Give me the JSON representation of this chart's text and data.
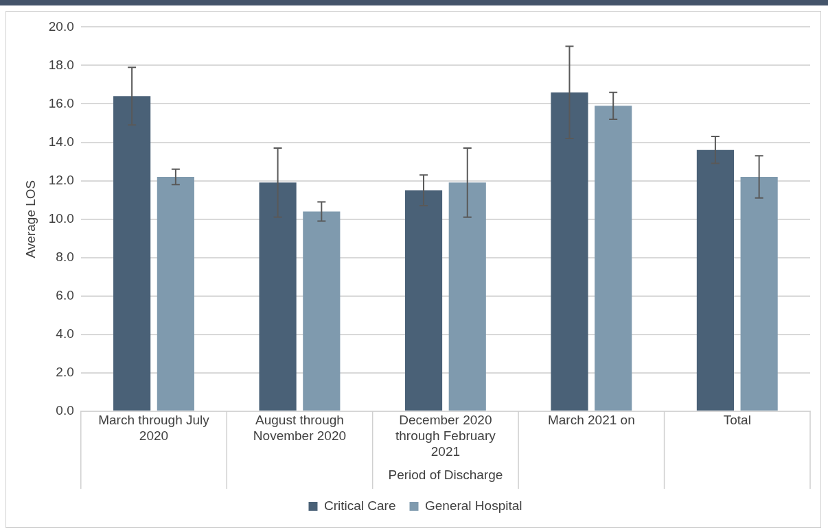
{
  "chart_data": {
    "type": "bar",
    "xlabel": "Period of Discharge",
    "ylabel": "Average LOS",
    "categories": [
      "March through July 2020",
      "August through November 2020",
      "December 2020 through February 2021",
      "March 2021 on",
      "Total"
    ],
    "series": [
      {
        "name": "Critical Care",
        "color": "#4a6177",
        "values": [
          16.4,
          11.9,
          11.5,
          16.6,
          13.6
        ],
        "errors": [
          1.5,
          1.8,
          0.8,
          2.4,
          0.7
        ]
      },
      {
        "name": "General Hospital",
        "color": "#7f9aae",
        "values": [
          12.2,
          10.4,
          11.9,
          15.9,
          12.2
        ],
        "errors": [
          0.4,
          0.5,
          1.8,
          0.7,
          1.1
        ]
      }
    ],
    "ylim": [
      0,
      20
    ],
    "yticks": [
      {
        "value": 0,
        "label": "0.0"
      },
      {
        "value": 2,
        "label": "2.0"
      },
      {
        "value": 4,
        "label": "4.0"
      },
      {
        "value": 6,
        "label": "6.0"
      },
      {
        "value": 8,
        "label": "8.0"
      },
      {
        "value": 10,
        "label": "10.0"
      },
      {
        "value": 12,
        "label": "12.0"
      },
      {
        "value": 14,
        "label": "14.0"
      },
      {
        "value": 16,
        "label": "16.0"
      },
      {
        "value": 18,
        "label": "18.0"
      },
      {
        "value": 20,
        "label": "20.0"
      }
    ],
    "grid": "y",
    "legend": "bottom"
  }
}
